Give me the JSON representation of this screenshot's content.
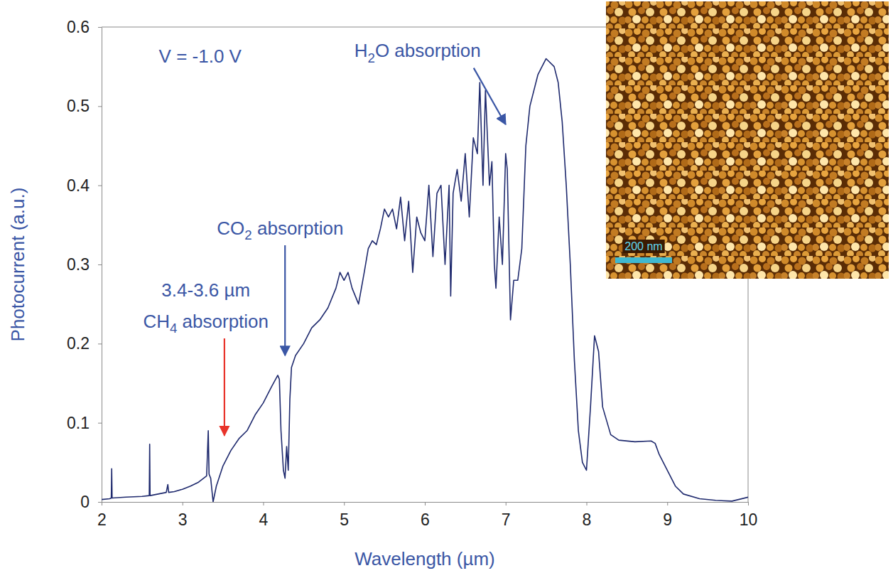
{
  "chart_data": {
    "type": "line",
    "x_label": "Wavelength (µm)",
    "y_label": "Photocurrent (a.u.)",
    "color": "#1f2a6e",
    "xlim": [
      2,
      10
    ],
    "ylim": [
      0,
      0.6
    ],
    "xticks": [
      2,
      3,
      4,
      5,
      6,
      7,
      8,
      9,
      10
    ],
    "yticks": [
      0,
      0.1,
      0.2,
      0.3,
      0.4,
      0.5,
      0.6
    ],
    "grid": false,
    "x": [
      2,
      2.1,
      2.12,
      2.125,
      2.13,
      2.3,
      2.5,
      2.59,
      2.595,
      2.6,
      2.7,
      2.8,
      2.82,
      2.83,
      2.9,
      3,
      3.1,
      3.2,
      3.3,
      3.32,
      3.33,
      3.35,
      3.38,
      3.42,
      3.5,
      3.6,
      3.7,
      3.8,
      3.9,
      4,
      4.1,
      4.18,
      4.2,
      4.22,
      4.25,
      4.27,
      4.29,
      4.31,
      4.33,
      4.35,
      4.4,
      4.5,
      4.6,
      4.7,
      4.8,
      4.9,
      4.95,
      5,
      5.05,
      5.1,
      5.18,
      5.25,
      5.3,
      5.35,
      5.4,
      5.45,
      5.5,
      5.55,
      5.6,
      5.65,
      5.7,
      5.75,
      5.8,
      5.85,
      5.9,
      5.95,
      6,
      6.05,
      6.1,
      6.15,
      6.2,
      6.25,
      6.3,
      6.32,
      6.35,
      6.4,
      6.45,
      6.5,
      6.55,
      6.6,
      6.65,
      6.68,
      6.72,
      6.75,
      6.8,
      6.83,
      6.86,
      6.88,
      6.92,
      6.96,
      7,
      7.02,
      7.06,
      7.1,
      7.15,
      7.2,
      7.25,
      7.3,
      7.4,
      7.5,
      7.6,
      7.65,
      7.7,
      7.75,
      7.8,
      7.85,
      7.9,
      7.95,
      8,
      8.05,
      8.1,
      8.15,
      8.2,
      8.3,
      8.4,
      8.6,
      8.8,
      8.85,
      8.9,
      9,
      9.1,
      9.2,
      9.4,
      9.6,
      9.8,
      10
    ],
    "values": [
      0.003,
      0.004,
      0.005,
      0.042,
      0.005,
      0.006,
      0.007,
      0.008,
      0.073,
      0.008,
      0.01,
      0.012,
      0.022,
      0.012,
      0.013,
      0.016,
      0.02,
      0.025,
      0.033,
      0.09,
      0.035,
      0.03,
      0,
      0.02,
      0.045,
      0.065,
      0.08,
      0.09,
      0.11,
      0.125,
      0.145,
      0.16,
      0.155,
      0.09,
      0.04,
      0.03,
      0.07,
      0.04,
      0.13,
      0.17,
      0.185,
      0.2,
      0.22,
      0.23,
      0.245,
      0.27,
      0.29,
      0.28,
      0.29,
      0.27,
      0.25,
      0.29,
      0.32,
      0.33,
      0.325,
      0.345,
      0.37,
      0.36,
      0.37,
      0.345,
      0.385,
      0.33,
      0.38,
      0.29,
      0.36,
      0.34,
      0.33,
      0.4,
      0.31,
      0.39,
      0.4,
      0.3,
      0.4,
      0.26,
      0.39,
      0.42,
      0.38,
      0.44,
      0.36,
      0.46,
      0.44,
      0.53,
      0.4,
      0.52,
      0.4,
      0.43,
      0.3,
      0.27,
      0.36,
      0.3,
      0.44,
      0.42,
      0.23,
      0.28,
      0.28,
      0.32,
      0.45,
      0.5,
      0.54,
      0.56,
      0.55,
      0.53,
      0.48,
      0.4,
      0.3,
      0.18,
      0.09,
      0.05,
      0.04,
      0.12,
      0.21,
      0.19,
      0.12,
      0.085,
      0.078,
      0.076,
      0.077,
      0.074,
      0.06,
      0.04,
      0.02,
      0.01,
      0.004,
      0.002,
      0.001,
      0.006
    ],
    "annotations": [
      {
        "text": [
          "V = -1.0 V"
        ],
        "text_x": 3.22,
        "text_y": 0.555
      },
      {
        "text": [
          "3.4-3.6 µm",
          "CH4 absorption"
        ],
        "text_x": 3.29,
        "text_y": 0.26,
        "x": 3.52,
        "y": 0.084,
        "color": "#e8332a"
      },
      {
        "text": [
          "CO2 absorption"
        ],
        "text_x": 4.21,
        "text_y": 0.338,
        "x": 4.27,
        "y": 0.185,
        "color": "#3a56a5"
      },
      {
        "text": [
          "H2O absorption"
        ],
        "text_x": 5.91,
        "text_y": 0.562,
        "x": 7.0,
        "y": 0.477,
        "color": "#3a56a5"
      }
    ],
    "inset": {
      "scale_label": "200 nm"
    }
  }
}
